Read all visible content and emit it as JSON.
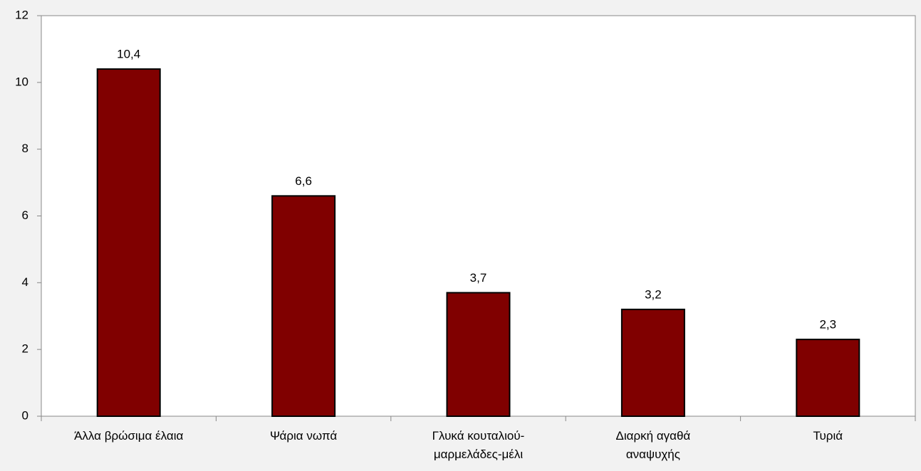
{
  "chart_data": {
    "type": "bar",
    "categories": [
      "Άλλα βρώσιμα έλαια",
      "Ψάρια νωπά",
      "Γλυκά κουταλιού-\nμαρμελάδες-μέλι",
      "Διαρκή αγαθά\nαναψυχής",
      "Τυριά"
    ],
    "values": [
      10.4,
      6.6,
      3.7,
      3.2,
      2.3
    ],
    "value_labels": [
      "10,4",
      "6,6",
      "3,7",
      "3,2",
      "2,3"
    ],
    "color": "#800000",
    "ylim": [
      0,
      12
    ],
    "yticks": [
      0,
      2,
      4,
      6,
      8,
      10,
      12
    ],
    "grid": false
  }
}
